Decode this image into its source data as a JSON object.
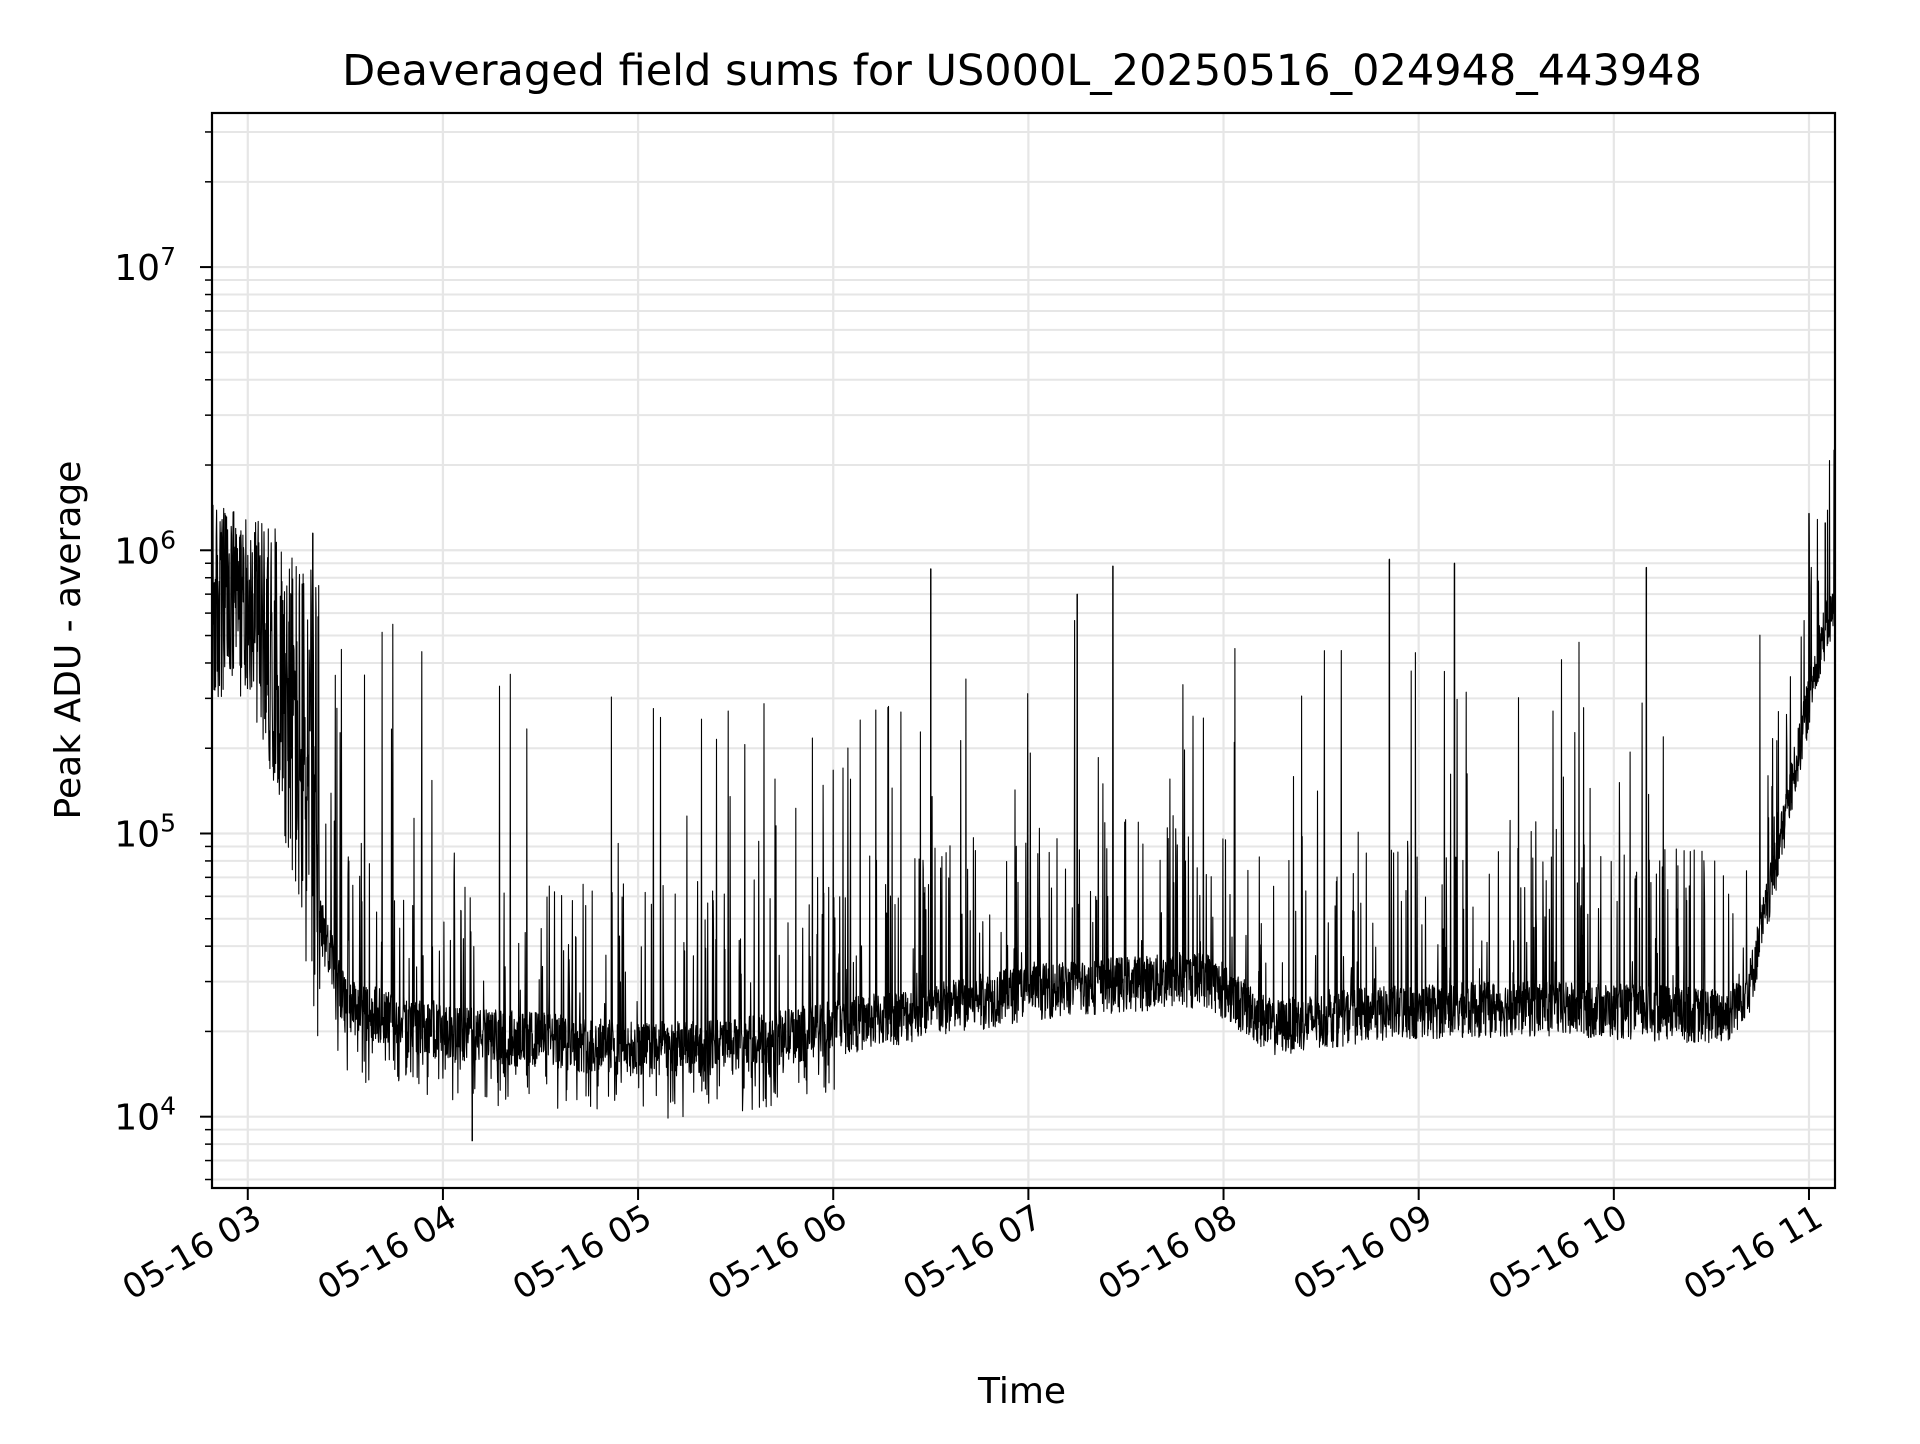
{
  "chart_data": {
    "type": "line",
    "title": "Deaveraged field sums for US000L_20250516_024948_443948",
    "xlabel": "Time",
    "ylabel": "Peak ADU - average",
    "yscale": "log",
    "x_range": [
      "2025-05-16 02:49",
      "2025-05-16 11:08"
    ],
    "ylim": [
      5600,
      35000000
    ],
    "grid": true,
    "grid_minor": true,
    "legend": "none",
    "line_color": "#000000",
    "x_ticks": [
      "05-16 03",
      "05-16 04",
      "05-16 05",
      "05-16 06",
      "05-16 07",
      "05-16 08",
      "05-16 09",
      "05-16 10",
      "05-16 11"
    ],
    "y_ticks": [
      {
        "base": "10",
        "exp": "4",
        "value": 10000
      },
      {
        "base": "10",
        "exp": "5",
        "value": 100000
      },
      {
        "base": "10",
        "exp": "6",
        "value": 1000000
      },
      {
        "base": "10",
        "exp": "7",
        "value": 10000000
      }
    ],
    "series": [
      {
        "baseline": [
          [
            "2025-05-16 02:49",
            700000
          ],
          [
            "2025-05-16 03:00",
            900000
          ],
          [
            "2025-05-16 03:10",
            350000
          ],
          [
            "2025-05-16 03:20",
            60000
          ],
          [
            "2025-05-16 03:30",
            25000
          ],
          [
            "2025-05-16 04:00",
            20000
          ],
          [
            "2025-05-16 04:30",
            19000
          ],
          [
            "2025-05-16 05:00",
            17500
          ],
          [
            "2025-05-16 05:30",
            18000
          ],
          [
            "2025-05-16 06:00",
            21000
          ],
          [
            "2025-05-16 06:30",
            24000
          ],
          [
            "2025-05-16 07:00",
            28000
          ],
          [
            "2025-05-16 07:30",
            30000
          ],
          [
            "2025-05-16 07:55",
            31000
          ],
          [
            "2025-05-16 08:15",
            21000
          ],
          [
            "2025-05-16 08:40",
            23000
          ],
          [
            "2025-05-16 09:00",
            24000
          ],
          [
            "2025-05-16 09:30",
            24500
          ],
          [
            "2025-05-16 10:00",
            24000
          ],
          [
            "2025-05-16 10:35",
            23000
          ],
          [
            "2025-05-16 10:42",
            30000
          ],
          [
            "2025-05-16 10:50",
            80000
          ],
          [
            "2025-05-16 10:57",
            200000
          ],
          [
            "2025-05-16 11:03",
            450000
          ],
          [
            "2025-05-16 11:08",
            650000
          ]
        ],
        "spike_envelope": [
          [
            "2025-05-16 02:49",
            1500000
          ],
          [
            "2025-05-16 03:10",
            1200000
          ],
          [
            "2025-05-16 03:30",
            600000
          ],
          [
            "2025-05-16 04:00",
            500000
          ],
          [
            "2025-05-16 04:30",
            420000
          ],
          [
            "2025-05-16 05:00",
            320000
          ],
          [
            "2025-05-16 05:30",
            280000
          ],
          [
            "2025-05-16 06:00",
            380000
          ],
          [
            "2025-05-16 06:30",
            330000
          ],
          [
            "2025-05-16 07:00",
            650000
          ],
          [
            "2025-05-16 07:30",
            750000
          ],
          [
            "2025-05-16 08:00",
            500000
          ],
          [
            "2025-05-16 08:30",
            450000
          ],
          [
            "2025-05-16 09:00",
            620000
          ],
          [
            "2025-05-16 09:30",
            500000
          ],
          [
            "2025-05-16 10:00",
            520000
          ],
          [
            "2025-05-16 10:30",
            480000
          ],
          [
            "2025-05-16 11:08",
            1300000
          ]
        ],
        "notable_points": [
          [
            "2025-05-16 03:20",
            1150000
          ],
          [
            "2025-05-16 04:09",
            8200
          ],
          [
            "2025-05-16 06:30",
            860000
          ],
          [
            "2025-05-16 07:15",
            700000
          ],
          [
            "2025-05-16 07:26",
            880000
          ],
          [
            "2025-05-16 08:51",
            930000
          ],
          [
            "2025-05-16 09:11",
            900000
          ],
          [
            "2025-05-16 10:10",
            870000
          ],
          [
            "2025-05-16 11:00",
            1350000
          ],
          [
            "2025-05-16 11:05",
            1250000
          ]
        ]
      }
    ]
  }
}
